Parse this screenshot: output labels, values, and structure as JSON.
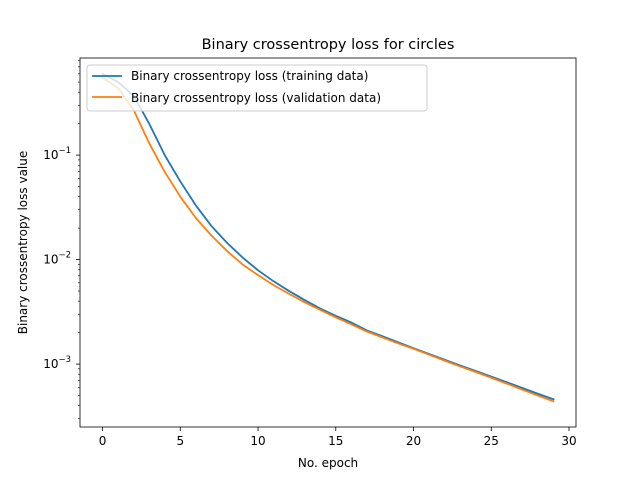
{
  "chart_data": {
    "type": "line",
    "title": "Binary crossentropy loss for circles",
    "xlabel": "No. epoch",
    "ylabel": "Binary crossentropy loss value",
    "xlim": [
      -1.45,
      30.45
    ],
    "ylim": [
      0.00025,
      0.85
    ],
    "yscale": "log",
    "xticks": [
      0,
      5,
      10,
      15,
      20,
      25,
      30
    ],
    "yticks": [
      {
        "value": 0.001,
        "base": "10",
        "exp": "−3"
      },
      {
        "value": 0.01,
        "base": "10",
        "exp": "−2"
      },
      {
        "value": 0.1,
        "base": "10",
        "exp": "−1"
      }
    ],
    "legend_position": "upper-left",
    "grid": false,
    "x": [
      0,
      1,
      2,
      3,
      4,
      5,
      6,
      7,
      8,
      9,
      10,
      11,
      12,
      13,
      14,
      15,
      16,
      17,
      18,
      19,
      20,
      21,
      22,
      23,
      24,
      25,
      26,
      27,
      28,
      29
    ],
    "series": [
      {
        "name": "Binary crossentropy loss (training data)",
        "color": "#1f77b4",
        "values": [
          0.6,
          0.5,
          0.37,
          0.2,
          0.1,
          0.056,
          0.033,
          0.021,
          0.0145,
          0.0105,
          0.0079,
          0.0062,
          0.005,
          0.0041,
          0.0034,
          0.0029,
          0.0025,
          0.0021,
          0.00185,
          0.00162,
          0.00142,
          0.00125,
          0.0011,
          0.00097,
          0.00086,
          0.00076,
          0.00067,
          0.00059,
          0.00052,
          0.00046
        ]
      },
      {
        "name": "Binary crossentropy loss (validation data)",
        "color": "#ff7f0e",
        "values": [
          0.55,
          0.44,
          0.27,
          0.13,
          0.069,
          0.04,
          0.025,
          0.017,
          0.0121,
          0.009,
          0.0071,
          0.0057,
          0.0047,
          0.0039,
          0.0033,
          0.0028,
          0.0024,
          0.00205,
          0.0018,
          0.00158,
          0.0014,
          0.00123,
          0.00108,
          0.00095,
          0.00084,
          0.00074,
          0.00065,
          0.00057,
          0.0005,
          0.00044
        ]
      }
    ]
  }
}
